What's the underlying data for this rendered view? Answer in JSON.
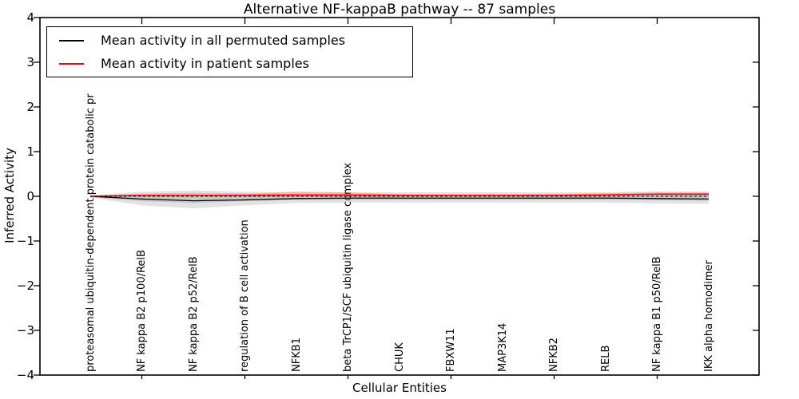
{
  "chart_data": {
    "type": "line",
    "title": "Alternative NF-kappaB pathway -- 87 samples",
    "xlabel": "Cellular Entities",
    "ylabel": "Inferred Activity",
    "ylim": [
      -4,
      4
    ],
    "yticks": [
      4,
      3,
      2,
      1,
      0,
      -1,
      -2,
      -3,
      -4
    ],
    "ytick_labels": [
      "4",
      "3",
      "2",
      "1",
      "0",
      "−1",
      "−2",
      "−3",
      "−4"
    ],
    "grid": false,
    "legend_position": "upper left",
    "categories": [
      "proteasomal ubiquitin-dependent protein catabolic pr",
      "NF kappa B2 p100/RelB",
      "NF kappa B2 p52/RelB",
      "regulation of B cell activation",
      "NFKB1",
      "beta TrCP1/SCF ubiquitin ligase complex",
      "CHUK",
      "FBXW11",
      "MAP3K14",
      "NFKB2",
      "RELB",
      "NF kappa B1 p50/RelB",
      "IKK alpha homodimer"
    ],
    "series": [
      {
        "name": "Mean activity in all permuted samples",
        "color": "#000000",
        "width": 1.3,
        "values": [
          0.0,
          -0.06,
          -0.1,
          -0.08,
          -0.05,
          -0.04,
          -0.04,
          -0.04,
          -0.04,
          -0.04,
          -0.04,
          -0.05,
          -0.06
        ]
      },
      {
        "name": "Mean activity in patient samples",
        "color": "#ff0000",
        "width": 1.5,
        "values": [
          0.0,
          0.02,
          0.02,
          0.02,
          0.03,
          0.03,
          0.02,
          0.02,
          0.02,
          0.02,
          0.03,
          0.05,
          0.05
        ]
      }
    ],
    "bands": [
      {
        "name": "permuted-range-outer",
        "color": "rgba(150,150,150,0.28)",
        "upper": [
          0.02,
          0.1,
          0.13,
          0.1,
          0.09,
          0.09,
          0.09,
          0.09,
          0.09,
          0.09,
          0.09,
          0.11,
          0.11
        ],
        "lower": [
          -0.03,
          -0.2,
          -0.27,
          -0.2,
          -0.15,
          -0.14,
          -0.14,
          -0.14,
          -0.14,
          -0.14,
          -0.14,
          -0.16,
          -0.17
        ]
      },
      {
        "name": "permuted-range-inner",
        "color": "rgba(130,130,130,0.28)",
        "upper": [
          0.01,
          0.06,
          0.08,
          0.06,
          0.05,
          0.05,
          0.05,
          0.05,
          0.05,
          0.05,
          0.05,
          0.06,
          0.06
        ],
        "lower": [
          -0.02,
          -0.11,
          -0.15,
          -0.11,
          -0.08,
          -0.08,
          -0.08,
          -0.08,
          -0.08,
          -0.08,
          -0.08,
          -0.09,
          -0.1
        ]
      },
      {
        "name": "patient-range",
        "color": "rgba(255,0,0,0.18)",
        "upper": [
          0.01,
          0.03,
          0.03,
          0.05,
          0.11,
          0.09,
          0.04,
          0.03,
          0.03,
          0.05,
          0.07,
          0.09,
          0.08
        ],
        "lower": [
          -0.01,
          0.0,
          0.0,
          0.0,
          -0.01,
          -0.01,
          0.0,
          0.0,
          0.0,
          0.0,
          0.0,
          0.0,
          0.0
        ]
      }
    ],
    "zero_line": {
      "value": 0,
      "style": "dashed",
      "color": "#000000"
    }
  }
}
